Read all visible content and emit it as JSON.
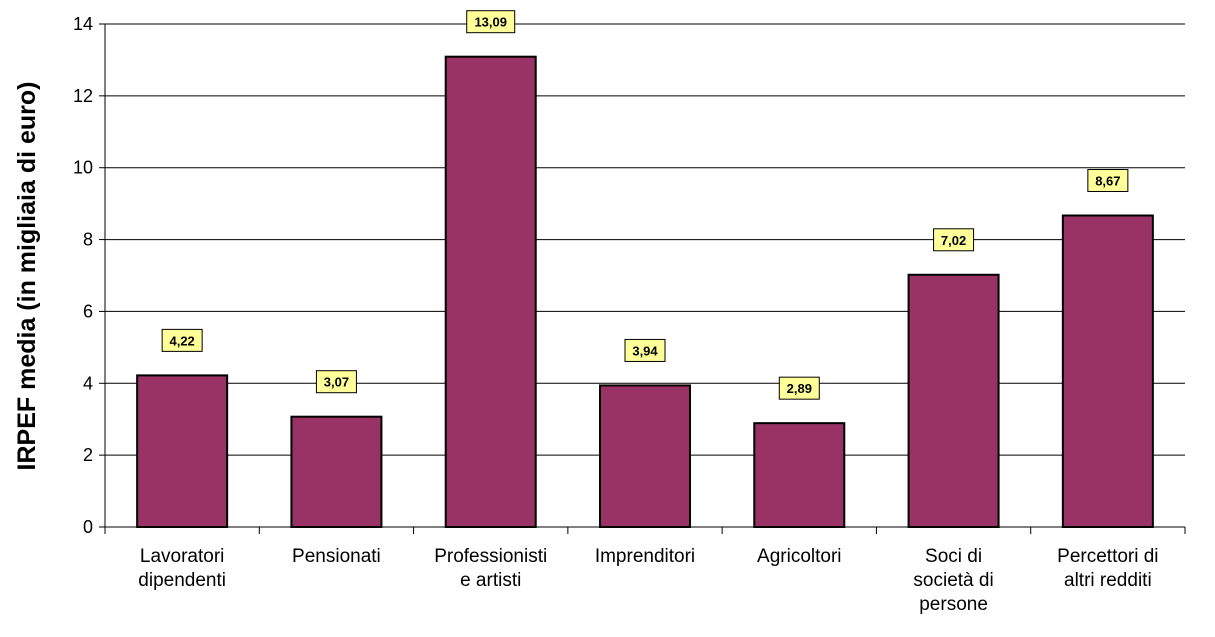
{
  "chart_data": {
    "type": "bar",
    "title": "",
    "xlabel": "",
    "ylabel": "IRPEF media (in migliaia di euro)",
    "ylim": [
      0,
      14
    ],
    "yticks": [
      0,
      2,
      4,
      6,
      8,
      10,
      12,
      14
    ],
    "grid": true,
    "legend": "none",
    "categories": [
      [
        "Lavoratori",
        "dipendenti"
      ],
      [
        "Pensionati"
      ],
      [
        "Professionisti",
        "e artisti"
      ],
      [
        "Imprenditori"
      ],
      [
        "Agricoltori"
      ],
      [
        "Soci di",
        "società di",
        "persone"
      ],
      [
        "Percettori di",
        "altri redditi"
      ]
    ],
    "values": [
      4.22,
      3.07,
      13.09,
      3.94,
      2.89,
      7.02,
      8.67
    ],
    "data_labels": [
      "4,22",
      "3,07",
      "13,09",
      "3,94",
      "2,89",
      "7,02",
      "8,67"
    ],
    "colors": {
      "bar": "#993366",
      "bar_border": "#000000",
      "label_bg": "#ffff99",
      "grid": "#000000"
    }
  }
}
